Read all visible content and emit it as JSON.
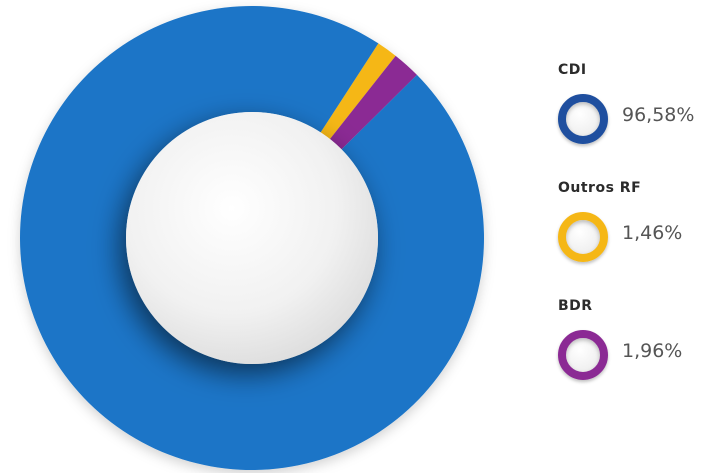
{
  "chart_data": {
    "type": "pie",
    "variant": "donut",
    "categories": [
      "CDI",
      "Outros RF",
      "BDR"
    ],
    "values": [
      96.58,
      1.46,
      1.96
    ],
    "value_labels": [
      "96,58%",
      "1,46%",
      "1,96%"
    ],
    "colors": [
      "#1a74c7",
      "#f5b716",
      "#8b2a94"
    ],
    "ring_colors": [
      "#1f4f9f",
      "#f5b716",
      "#8b2a94"
    ],
    "legend_placement": "right"
  }
}
